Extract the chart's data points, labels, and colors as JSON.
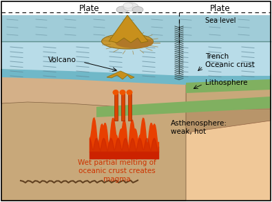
{
  "bg_color": "#ffffff",
  "ocean_color": "#b8dce8",
  "ocean_color2": "#a0ccd8",
  "crust_color": "#c8a87a",
  "asthenosphere_color": "#f0c898",
  "subduct_plate_color": "#b8956a",
  "green_layer_color": "#80b060",
  "magma_color": "#e84000",
  "magma_dark": "#cc2200",
  "teal_strip": "#70b8c8",
  "labels": {
    "plate_left": "Plate",
    "plate_right": "Plate",
    "sea_level": "Sea level",
    "volcano": "Volcano",
    "trench": "Trench",
    "oceanic_crust": "Oceanic crust",
    "lithosphere": "Lithosphere",
    "asthenosphere": "Asthenosphere:\nweak, hot",
    "magma_text": "Wet partial melting of\noceanic crust creates\nmagma"
  },
  "label_fontsize": 7.5
}
